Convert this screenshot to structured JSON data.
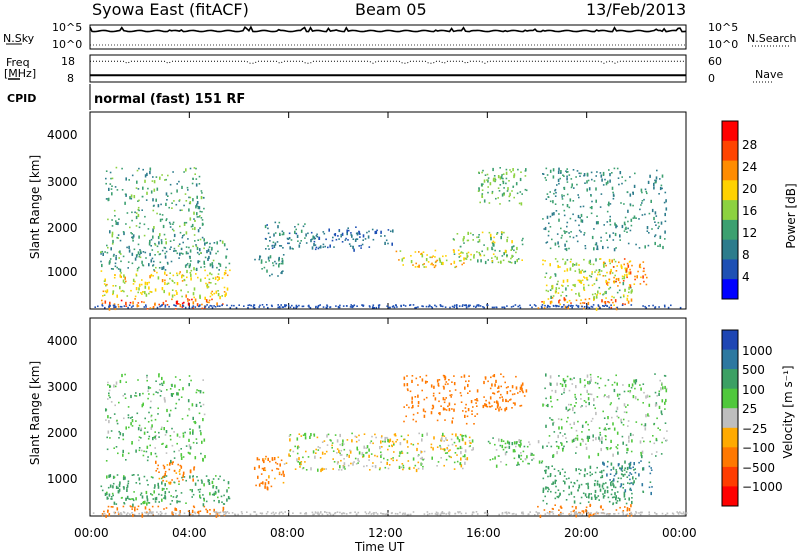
{
  "header": {
    "station": "Syowa East (fitACF)",
    "beam": "Beam 05",
    "date": "13/Feb/2013"
  },
  "top_panels": {
    "nsky_label": "N.Sky",
    "nsky_ticks": [
      "10^5",
      "10^0"
    ],
    "nsearch_label": "N.Search",
    "freq_label_1": "Freq",
    "freq_label_2": "[MHz]",
    "freq_ticks": [
      "18",
      "8"
    ],
    "nave_label": "Nave",
    "nave_ticks": [
      "60",
      "0"
    ],
    "cpid_label": "CPID",
    "mode_text": "normal (fast) 151 RF"
  },
  "axes": {
    "ylabel": "Slant Range [km]",
    "xlabel": "Time UT",
    "x_ticks": [
      "00:00",
      "04:00",
      "08:00",
      "12:00",
      "16:00",
      "20:00",
      "00:00"
    ],
    "y_ticks": [
      "4000",
      "3000",
      "2000",
      "1000"
    ]
  },
  "power_scale": {
    "label": "Power [dB]",
    "ticks": [
      "28",
      "24",
      "20",
      "16",
      "12",
      "8",
      "4"
    ],
    "colors": [
      "#ff0000",
      "#ff4400",
      "#ff8c00",
      "#ffd200",
      "#8cd240",
      "#3ca070",
      "#2d7c8c",
      "#1e50b4",
      "#0000ff"
    ]
  },
  "velocity_scale": {
    "label": "Velocity [m s⁻¹]",
    "ticks": [
      "1000",
      "500",
      "100",
      "25",
      "−25",
      "−100",
      "−500",
      "−1000"
    ],
    "colors": [
      "#1e46b4",
      "#2d78a0",
      "#3ca064",
      "#50c83c",
      "#bebebe",
      "#ffaa00",
      "#ff7800",
      "#ff3c00",
      "#ff0000"
    ]
  },
  "chart_data": [
    {
      "type": "line",
      "title": "Syowa East (fitACF) Beam 05 13/Feb/2013",
      "series": [
        {
          "name": "N.Sky",
          "x": [
            0,
            2,
            4,
            6,
            8,
            10,
            12,
            14,
            16,
            18,
            20,
            22,
            24
          ],
          "values": [
            60000,
            90000,
            70000,
            80000,
            40000,
            60000,
            70000,
            50000,
            70000,
            60000,
            90000,
            100000,
            50000
          ]
        }
      ],
      "xlim": [
        0,
        24
      ],
      "ylim_labels": [
        "10^0",
        "10^5"
      ]
    },
    {
      "type": "line",
      "series": [
        {
          "name": "Freq",
          "x": [
            0,
            4,
            8,
            12,
            16,
            20,
            24
          ],
          "values": [
            10.5,
            10.5,
            10.5,
            10.5,
            10.5,
            10.5,
            10.5
          ]
        },
        {
          "name": "Nave",
          "x": [
            0,
            4,
            8,
            12,
            16,
            20,
            24
          ],
          "values": [
            46,
            46,
            46,
            46,
            46,
            46,
            46
          ]
        }
      ],
      "xlim": [
        0,
        24
      ],
      "ylim_freq": [
        8,
        18
      ],
      "ylim_nave": [
        0,
        60
      ]
    },
    {
      "type": "heatmap",
      "quantity": "Power [dB]",
      "xlabel": "Time UT",
      "ylabel": "Slant Range [km]",
      "xlim": [
        0,
        24
      ],
      "ylim": [
        180,
        4500
      ],
      "color_ticks": [
        4,
        8,
        12,
        16,
        20,
        24,
        28
      ],
      "regions": [
        {
          "t0": 0.3,
          "t1": 5.4,
          "r0": 200,
          "r1": 420,
          "dB": 27
        },
        {
          "t0": 0.4,
          "t1": 5.6,
          "r0": 450,
          "r1": 1050,
          "dB": 19
        },
        {
          "t0": 0.4,
          "t1": 5.6,
          "r0": 1050,
          "r1": 1700,
          "dB": 11
        },
        {
          "t0": 0.6,
          "t1": 4.6,
          "r0": 1700,
          "r1": 3300,
          "dB": 12
        },
        {
          "t0": 6.6,
          "t1": 7.8,
          "r0": 900,
          "r1": 1400,
          "dB": 10
        },
        {
          "t0": 7.0,
          "t1": 9.0,
          "r0": 1500,
          "r1": 2100,
          "dB": 8
        },
        {
          "t0": 9.0,
          "t1": 12.2,
          "r0": 1500,
          "r1": 2000,
          "dB": 6
        },
        {
          "t0": 12.2,
          "t1": 15.2,
          "r0": 1100,
          "r1": 1500,
          "dB": 20
        },
        {
          "t0": 14.6,
          "t1": 17.4,
          "r0": 1200,
          "r1": 1900,
          "dB": 15
        },
        {
          "t0": 15.6,
          "t1": 17.6,
          "r0": 2500,
          "r1": 3300,
          "dB": 14
        },
        {
          "t0": 18.0,
          "t1": 21.8,
          "r0": 200,
          "r1": 450,
          "dB": 24
        },
        {
          "t0": 18.2,
          "t1": 21.8,
          "r0": 450,
          "r1": 1300,
          "dB": 17
        },
        {
          "t0": 20.6,
          "t1": 22.4,
          "r0": 700,
          "r1": 1300,
          "dB": 24
        },
        {
          "t0": 18.2,
          "t1": 23.2,
          "r0": 1500,
          "r1": 3300,
          "dB": 10
        }
      ]
    },
    {
      "type": "heatmap",
      "quantity": "Velocity [m s-1]",
      "xlabel": "Time UT",
      "ylabel": "Slant Range [km]",
      "xlim": [
        0,
        24
      ],
      "ylim": [
        180,
        4500
      ],
      "color_ticks": [
        1000,
        500,
        100,
        25,
        -25,
        -100,
        -500,
        -1000
      ],
      "regions": [
        {
          "t0": 0.3,
          "t1": 5.4,
          "r0": 200,
          "r1": 420,
          "v": -200
        },
        {
          "t0": 0.4,
          "t1": 5.6,
          "r0": 450,
          "r1": 1100,
          "v": 150
        },
        {
          "t0": 2.6,
          "t1": 4.2,
          "r0": 900,
          "r1": 1400,
          "v": -150
        },
        {
          "t0": 0.6,
          "t1": 4.6,
          "r0": 1400,
          "r1": 3300,
          "v": 80
        },
        {
          "t0": 6.6,
          "t1": 7.8,
          "r0": 800,
          "r1": 1500,
          "v": -150
        },
        {
          "t0": 7.8,
          "t1": 15.4,
          "r0": 1200,
          "r1": 2000,
          "v": 0
        },
        {
          "t0": 12.6,
          "t1": 15.6,
          "r0": 2200,
          "r1": 3300,
          "v": -300
        },
        {
          "t0": 15.8,
          "t1": 17.6,
          "r0": 2500,
          "r1": 3300,
          "v": -200
        },
        {
          "t0": 16.0,
          "t1": 18.2,
          "r0": 1300,
          "r1": 1900,
          "v": 60
        },
        {
          "t0": 18.0,
          "t1": 21.8,
          "r0": 200,
          "r1": 450,
          "v": -200
        },
        {
          "t0": 18.2,
          "t1": 21.8,
          "r0": 450,
          "r1": 1300,
          "v": 300
        },
        {
          "t0": 20.6,
          "t1": 22.6,
          "r0": 700,
          "r1": 1400,
          "v": 500
        },
        {
          "t0": 18.2,
          "t1": 23.2,
          "r0": 1500,
          "r1": 3300,
          "v": 60
        }
      ]
    }
  ]
}
